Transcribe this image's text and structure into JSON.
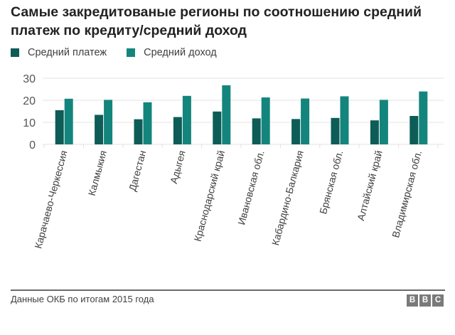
{
  "title": "Самые закредитованые регионы по соотношению средний платеж по кредиту/средний доход",
  "legend": [
    {
      "label": "Средний платеж",
      "color": "#0d5c57"
    },
    {
      "label": "Средний доход",
      "color": "#14857d"
    }
  ],
  "footer": {
    "source": "Данные ОКБ по итогам 2015 года",
    "logo_letters": [
      "B",
      "B",
      "C"
    ]
  },
  "chart_data": {
    "type": "bar",
    "title": "Самые закредитованые регионы по соотношению средний платеж по кредиту/средний доход",
    "xlabel": "",
    "ylabel": "",
    "ylim": [
      0,
      30
    ],
    "yticks": [
      "0",
      "10",
      "20",
      "30"
    ],
    "ytick_values": [
      0,
      10,
      20,
      30
    ],
    "grid": true,
    "legend_position": "top-left",
    "categories": [
      "Карачаево-Черкессия",
      "Калмыкия",
      "Дагестан",
      "Адыгея",
      "Краснодарский край",
      "Ивановская обл.",
      "Кабардино-Балкария",
      "Брянская обл.",
      "Алтайский край",
      "Владимирская обл."
    ],
    "series": [
      {
        "name": "Средний платеж",
        "color": "#0d5c57",
        "values": [
          15.5,
          13.4,
          11.4,
          12.4,
          14.9,
          11.8,
          11.5,
          12.0,
          10.9,
          12.9
        ]
      },
      {
        "name": "Средний доход",
        "color": "#14857d",
        "values": [
          20.7,
          20.2,
          19.1,
          22.0,
          26.8,
          21.3,
          20.8,
          21.8,
          20.2,
          24.0
        ]
      }
    ]
  }
}
